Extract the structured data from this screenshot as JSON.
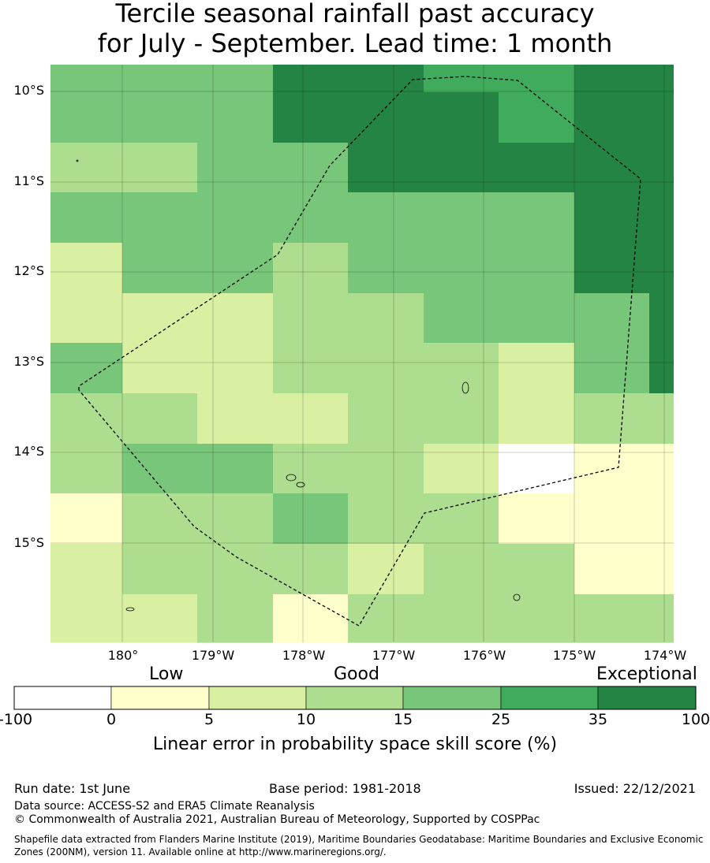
{
  "title": {
    "line1": "Tercile seasonal rainfall past accuracy",
    "line2": "for July - September. Lead time: 1 month"
  },
  "map": {
    "lat_ticks": [
      "10°S",
      "11°S",
      "12°S",
      "13°S",
      "14°S",
      "15°S"
    ],
    "lon_ticks": [
      "180°",
      "179°W",
      "178°W",
      "177°W",
      "176°W",
      "175°W",
      "174°W"
    ],
    "grid_lon_first_deg": -180.8,
    "grid_lat_first_deg": -9.7,
    "grid_cell_deg": 0.55,
    "skill_categories": [
      [
        4,
        4,
        4,
        6,
        6,
        5,
        5,
        6
      ],
      [
        4,
        4,
        4,
        6,
        6,
        6,
        5,
        6
      ],
      [
        3,
        3,
        4,
        4,
        6,
        6,
        6,
        6
      ],
      [
        4,
        4,
        4,
        4,
        4,
        4,
        4,
        6
      ],
      [
        2,
        4,
        4,
        3,
        4,
        4,
        4,
        6
      ],
      [
        2,
        2,
        2,
        3,
        3,
        4,
        4,
        4
      ],
      [
        4,
        2,
        2,
        3,
        3,
        3,
        2,
        4
      ],
      [
        3,
        3,
        2,
        2,
        3,
        3,
        2,
        3
      ],
      [
        3,
        4,
        4,
        3,
        3,
        2,
        0,
        1
      ],
      [
        1,
        3,
        3,
        4,
        3,
        3,
        1,
        1
      ],
      [
        2,
        3,
        3,
        3,
        2,
        3,
        3,
        1
      ],
      [
        2,
        2,
        3,
        1,
        3,
        3,
        3,
        3
      ]
    ],
    "eez_boundary": [
      [
        -179.75,
        -9.85
      ],
      [
        -178.9,
        -9.85
      ],
      [
        -178.3,
        -10.9
      ],
      [
        -176.9,
        -11.5
      ],
      [
        -174.3,
        -10.95
      ],
      [
        -174.5,
        -14.15
      ],
      [
        -176.2,
        -14.7
      ],
      [
        -176.65,
        -15.9
      ],
      [
        -178.4,
        -15.7
      ],
      [
        -179.6,
        -15.2
      ],
      [
        -180.5,
        -13.35
      ],
      [
        -180.25,
        -13.2
      ],
      [
        -178.2,
        -11.85
      ],
      [
        -177.7,
        -10.85
      ],
      [
        -176.85,
        -9.9
      ],
      [
        -175.8,
        -9.85
      ]
    ],
    "islands": [
      {
        "lon": -176.25,
        "lat": -13.3,
        "rx": 0.04,
        "ry": 0.06
      },
      {
        "lon": -177.98,
        "lat": -14.3,
        "rx": 0.07,
        "ry": 0.04
      },
      {
        "lon": -177.88,
        "lat": -14.36,
        "rx": 0.05,
        "ry": 0.025
      },
      {
        "lon": -175.77,
        "lat": -15.62,
        "rx": 0.035,
        "ry": 0.03
      },
      {
        "lon": -179.9,
        "lat": -15.77,
        "rx": 0.05,
        "ry": 0.015
      }
    ]
  },
  "legend": {
    "low": "Low",
    "good": "Good",
    "exceptional": "Exceptional",
    "ticks": [
      "-100",
      "0",
      "5",
      "10",
      "15",
      "25",
      "35",
      "100"
    ],
    "colors": [
      "#ffffff",
      "#ffffcc",
      "#d9f0a3",
      "#addd8e",
      "#78c679",
      "#41ab5d",
      "#238443"
    ],
    "title": "Linear error in probability space skill score (%)"
  },
  "footer": {
    "run_date": "Run date: 1st June",
    "base_period": "Base period: 1981-2018",
    "issued": "Issued: 22/12/2021",
    "data_source": "Data source: ACCESS-S2 and ERA5 Climate Reanalysis",
    "copyright": "© Commonwealth of Australia 2021, Australian Bureau of Meteorology, Supported by COSPPac",
    "shapefile_line1": "Shapefile data extracted from Flanders Marine Institute (2019), Maritime Boundaries Geodatabase: Maritime Boundaries and Exclusive Economic",
    "shapefile_line2": "Zones (200NM), version 11. Available online at http://www.marineregions.org/."
  }
}
